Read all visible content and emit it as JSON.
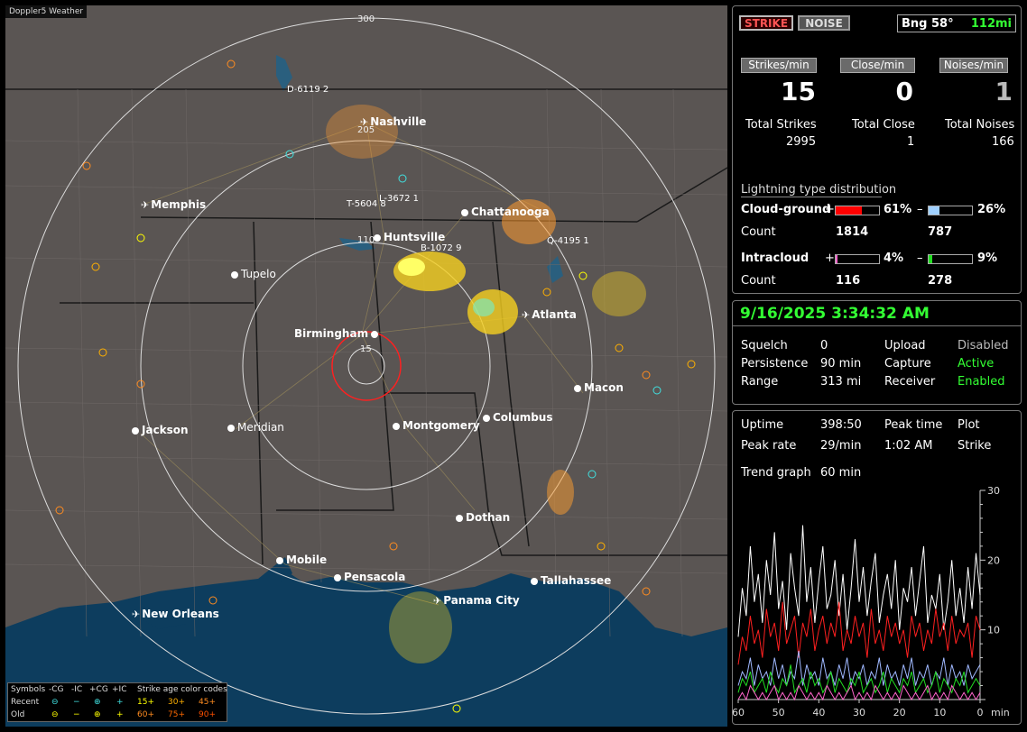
{
  "map": {
    "title": "Doppler5 Weather",
    "range_labels": [
      "300",
      "205",
      "110",
      "15"
    ],
    "cities": [
      {
        "name": "Nashville",
        "bold": true,
        "plane": true
      },
      {
        "name": "Memphis",
        "bold": true,
        "plane": true
      },
      {
        "name": "Chattanooga",
        "bold": true
      },
      {
        "name": "Huntsville",
        "bold": true
      },
      {
        "name": "Tupelo",
        "bold": false
      },
      {
        "name": "Birmingham",
        "bold": true
      },
      {
        "name": "Atlanta",
        "bold": true,
        "plane": true
      },
      {
        "name": "Macon",
        "bold": true
      },
      {
        "name": "Jackson",
        "bold": true,
        "plane": true
      },
      {
        "name": "Meridian",
        "bold": false
      },
      {
        "name": "Montgomery",
        "bold": true
      },
      {
        "name": "Columbus",
        "bold": true
      },
      {
        "name": "Dothan",
        "bold": true
      },
      {
        "name": "Mobile",
        "bold": true
      },
      {
        "name": "Pensacola",
        "bold": true
      },
      {
        "name": "Panama City",
        "bold": true,
        "plane": true
      },
      {
        "name": "Tallahassee",
        "bold": true
      },
      {
        "name": "New Orleans",
        "bold": true,
        "plane": true
      }
    ],
    "storm_labels": [
      "D-6119  2",
      "L-3672  1",
      "T-5604  8",
      "B-1072  9",
      "Q-4195  1"
    ]
  },
  "legend": {
    "header": [
      "Symbols",
      "-CG",
      "-IC",
      "+CG",
      "+IC",
      "Strike age color codes"
    ],
    "recent": {
      "label": "Recent",
      "ages": [
        "15+",
        "30+",
        "45+"
      ]
    },
    "old": {
      "label": "Old",
      "ages": [
        "60+",
        "75+",
        "90+"
      ]
    },
    "age_colors": [
      "#ffff00",
      "#ffb000",
      "#ff8c20",
      "#ff8c20",
      "#ff6a00",
      "#ff5000"
    ]
  },
  "status": {
    "strike_label": "STRIKE",
    "noise_label": "NOISE",
    "bearing": "Bng 58°",
    "distance": "112mi"
  },
  "rates": {
    "strikes_per_min_label": "Strikes/min",
    "close_per_min_label": "Close/min",
    "noises_per_min_label": "Noises/min",
    "strikes_per_min": "15",
    "close_per_min": "0",
    "noises_per_min": "1"
  },
  "totals": {
    "total_strikes_label": "Total Strikes",
    "total_close_label": "Total Close",
    "total_noises_label": "Total Noises",
    "total_strikes": "2995",
    "total_close": "1",
    "total_noises": "166"
  },
  "distribution": {
    "title": "Lightning type distribution",
    "cg_label": "Cloud-ground",
    "ic_label": "Intracloud",
    "count_label": "Count",
    "plus": "+",
    "minus": "–",
    "cg_plus_pct": 61,
    "cg_plus_pct_text": "61%",
    "cg_plus_count": "1814",
    "cg_minus_pct": 26,
    "cg_minus_pct_text": "26%",
    "cg_minus_count": "787",
    "ic_plus_pct": 4,
    "ic_plus_pct_text": "4%",
    "ic_plus_count": "116",
    "ic_minus_pct": 9,
    "ic_minus_pct_text": "9%",
    "ic_minus_count": "278",
    "colors": {
      "cg_plus": "#ff0000",
      "cg_minus": "#9fd0ff",
      "ic_plus": "#ff66cc",
      "ic_minus": "#22dd22"
    }
  },
  "settings": {
    "datetime": "9/16/2025 3:34:32 AM",
    "squelch_label": "Squelch",
    "squelch": "0",
    "persistence_label": "Persistence",
    "persistence": "90 min",
    "range_label": "Range",
    "range": "313 mi",
    "upload_label": "Upload",
    "upload": "Disabled",
    "capture_label": "Capture",
    "capture": "Active",
    "receiver_label": "Receiver",
    "receiver": "Enabled"
  },
  "stats": {
    "uptime_label": "Uptime",
    "uptime": "398:50",
    "peak_time_label": "Peak time",
    "peak_time": "1:02 AM",
    "plot_label": "Plot",
    "plot": "Strike",
    "peak_rate_label": "Peak rate",
    "peak_rate": "29/min",
    "trend_label": "Trend graph",
    "trend": "60 min"
  },
  "chart_data": {
    "type": "line",
    "x_ticks": [
      "60",
      "50",
      "40",
      "30",
      "20",
      "10",
      "0"
    ],
    "x_unit": "min",
    "y_ticks": [
      "10",
      "20",
      "30"
    ],
    "ylim": [
      0,
      30
    ],
    "xlim": [
      60,
      0
    ],
    "series": [
      {
        "color": "#ffffff",
        "values": [
          9,
          16,
          12,
          22,
          14,
          18,
          11,
          20,
          15,
          24,
          13,
          17,
          10,
          21,
          16,
          12,
          25,
          14,
          19,
          11,
          17,
          22,
          13,
          15,
          20,
          12,
          18,
          10,
          16,
          23,
          14,
          19,
          12,
          17,
          21,
          11,
          15,
          18,
          13,
          20,
          10,
          16,
          14,
          19,
          12,
          17,
          22,
          11,
          15,
          13,
          18,
          10,
          14,
          20,
          12,
          16,
          11,
          19,
          13,
          21,
          15
        ]
      },
      {
        "color": "#ff2020",
        "values": [
          5,
          9,
          7,
          12,
          8,
          10,
          6,
          13,
          9,
          11,
          7,
          14,
          8,
          10,
          12,
          6,
          11,
          9,
          13,
          7,
          10,
          12,
          8,
          11,
          9,
          14,
          7,
          10,
          8,
          12,
          9,
          11,
          6,
          13,
          8,
          10,
          7,
          12,
          9,
          11,
          8,
          10,
          6,
          12,
          9,
          11,
          7,
          10,
          8,
          13,
          9,
          11,
          7,
          12,
          8,
          10,
          9,
          11,
          6,
          12,
          10
        ]
      },
      {
        "color": "#9fb8ff",
        "values": [
          2,
          4,
          3,
          6,
          2,
          5,
          3,
          4,
          2,
          6,
          3,
          5,
          2,
          4,
          3,
          7,
          2,
          5,
          3,
          4,
          2,
          6,
          3,
          4,
          2,
          5,
          3,
          6,
          2,
          4,
          3,
          5,
          2,
          4,
          3,
          6,
          2,
          5,
          3,
          4,
          2,
          5,
          3,
          6,
          2,
          4,
          3,
          5,
          2,
          4,
          3,
          6,
          2,
          5,
          3,
          4,
          2,
          5,
          3,
          4,
          5
        ]
      },
      {
        "color": "#22dd22",
        "values": [
          1,
          3,
          2,
          4,
          1,
          2,
          3,
          1,
          4,
          2,
          1,
          3,
          2,
          5,
          1,
          2,
          3,
          1,
          4,
          2,
          3,
          1,
          2,
          4,
          1,
          3,
          2,
          1,
          3,
          2,
          4,
          1,
          2,
          3,
          1,
          2,
          4,
          1,
          3,
          2,
          1,
          3,
          2,
          4,
          1,
          2,
          3,
          1,
          2,
          4,
          1,
          3,
          2,
          1,
          3,
          2,
          4,
          1,
          2,
          3,
          2
        ]
      },
      {
        "color": "#ff66cc",
        "values": [
          0,
          1,
          0,
          2,
          1,
          0,
          1,
          0,
          1,
          2,
          0,
          1,
          0,
          1,
          0,
          2,
          1,
          0,
          1,
          0,
          1,
          0,
          2,
          1,
          0,
          1,
          0,
          1,
          2,
          0,
          1,
          0,
          1,
          0,
          2,
          1,
          0,
          1,
          0,
          1,
          0,
          2,
          1,
          0,
          1,
          0,
          1,
          2,
          0,
          1,
          0,
          1,
          0,
          2,
          1,
          0,
          1,
          0,
          1,
          0,
          1
        ]
      }
    ]
  }
}
